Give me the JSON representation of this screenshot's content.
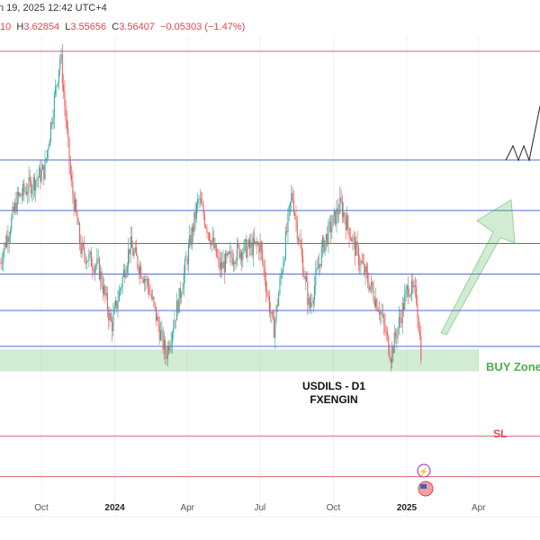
{
  "header": {
    "date": "n 19, 2025 12:42 UTC+4",
    "open_tail": "10",
    "h_label": "H",
    "h": "3.62854",
    "l_label": "L",
    "l": "3.55656",
    "c_label": "C",
    "c": "3.56407",
    "change": "−0.05303 (−1.47%)"
  },
  "chart_data": {
    "type": "candlestick",
    "title": "USDILS - D1",
    "subtitle": "FXENGIN",
    "x_ticks": [
      {
        "label": "Oct",
        "date": "2023-10-01"
      },
      {
        "label": "2024",
        "date": "2024-01-01",
        "bold": true
      },
      {
        "label": "Apr",
        "date": "2024-04-01"
      },
      {
        "label": "Jul",
        "date": "2024-07-01"
      },
      {
        "label": "Oct",
        "date": "2024-10-01"
      },
      {
        "label": "2025",
        "date": "2025-01-01",
        "bold": true
      },
      {
        "label": "Apr",
        "date": "2025-04-01"
      }
    ],
    "close_path": [
      [
        "2023-08-10",
        3.72
      ],
      [
        "2023-09-01",
        3.83
      ],
      [
        "2023-10-05",
        3.88
      ],
      [
        "2023-10-25",
        4.08
      ],
      [
        "2023-11-07",
        3.86
      ],
      [
        "2023-11-20",
        3.74
      ],
      [
        "2023-12-12",
        3.71
      ],
      [
        "2023-12-28",
        3.61
      ],
      [
        "2024-01-20",
        3.75
      ],
      [
        "2024-02-12",
        3.68
      ],
      [
        "2024-03-05",
        3.56
      ],
      [
        "2024-03-22",
        3.66
      ],
      [
        "2024-04-15",
        3.83
      ],
      [
        "2024-05-12",
        3.71
      ],
      [
        "2024-06-03",
        3.74
      ],
      [
        "2024-07-01",
        3.75
      ],
      [
        "2024-07-18",
        3.6
      ],
      [
        "2024-08-10",
        3.84
      ],
      [
        "2024-09-01",
        3.64
      ],
      [
        "2024-09-18",
        3.75
      ],
      [
        "2024-10-10",
        3.82
      ],
      [
        "2024-11-01",
        3.73
      ],
      [
        "2024-11-28",
        3.64
      ],
      [
        "2024-12-12",
        3.56
      ],
      [
        "2025-01-03",
        3.68
      ],
      [
        "2025-01-13",
        3.66
      ],
      [
        "2025-01-19",
        3.564
      ]
    ],
    "levels": [
      {
        "price": 4.085,
        "color": "#e06070"
      },
      {
        "price": 3.897,
        "color": "#4a6fd8"
      },
      {
        "price": 3.81,
        "color": "#4a6fd8"
      },
      {
        "price": 3.753,
        "color": "#4a6fd8"
      },
      {
        "price": 3.7,
        "color": "#4a6fd8"
      },
      {
        "price": 3.637,
        "color": "#4a6fd8"
      },
      {
        "price": 3.575,
        "color": "#4a6fd8"
      },
      {
        "price": 3.42,
        "color": "#e06070"
      },
      {
        "price": 3.35,
        "color": "#e06070"
      }
    ],
    "buy_zone": {
      "label": "BUY Zone",
      "from": 3.532,
      "to": 3.57,
      "color": "#4caf50"
    },
    "sl": {
      "label": "SL",
      "price": 3.42,
      "color": "#e0464c"
    },
    "colors": {
      "up": "#26a69a",
      "down": "#ef5350"
    }
  }
}
